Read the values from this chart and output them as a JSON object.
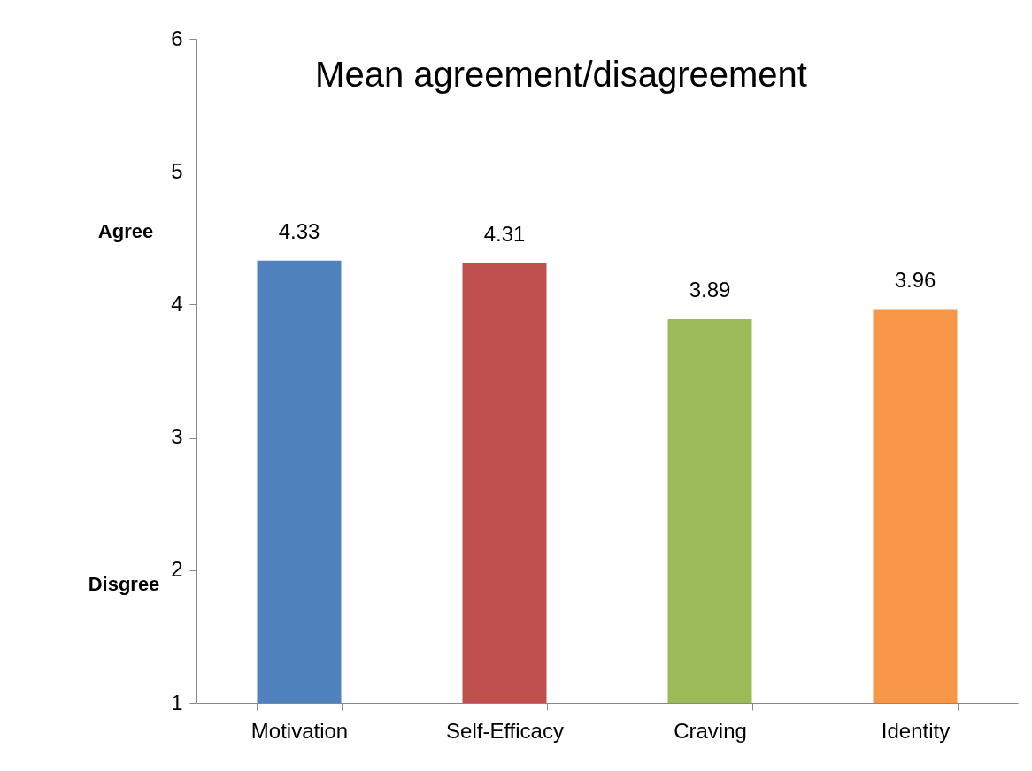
{
  "chart_data": {
    "type": "bar",
    "title": "Mean agreement/disagreement",
    "categories": [
      "Motivation",
      "Self-Efficacy",
      "Craving",
      "Identity"
    ],
    "values": [
      4.33,
      4.31,
      3.89,
      3.96
    ],
    "colors": [
      "#4f81bd",
      "#c0504d",
      "#9bbb59",
      "#f79646"
    ],
    "ylim": [
      1,
      6
    ],
    "yticks": [
      1,
      2,
      3,
      4,
      5,
      6
    ],
    "annotations": [
      "Agree",
      "Disgree"
    ],
    "data_labels": true,
    "grid": false,
    "legend": false
  }
}
